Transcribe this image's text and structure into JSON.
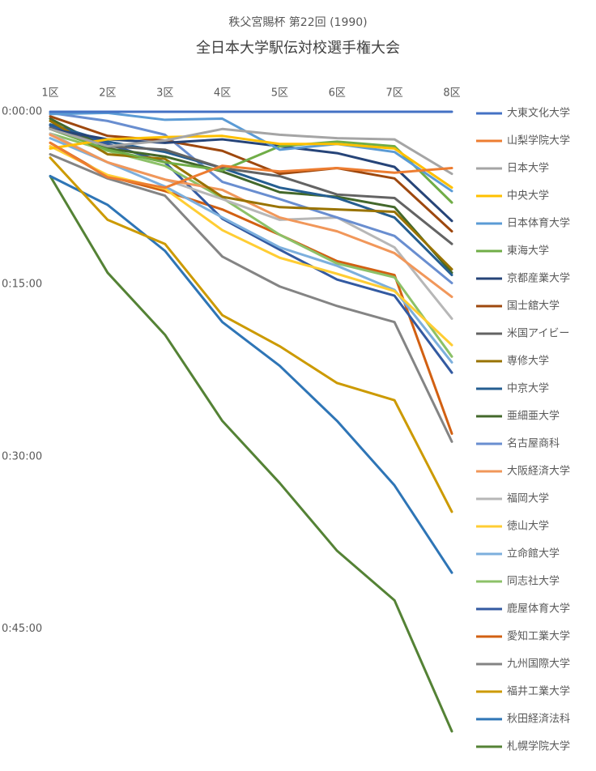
{
  "chart_data": {
    "type": "line",
    "title": "秩父宮賜杯 第22回 (1990)",
    "subtitle": "全日本大学駅伝対校選手権大会",
    "categories": [
      "1区",
      "2区",
      "3区",
      "4区",
      "5区",
      "6区",
      "7区",
      "8区"
    ],
    "ylim": [
      0,
      57
    ],
    "y_reversed": true,
    "yticks": [
      {
        "value": 0,
        "label": "0:00:00"
      },
      {
        "value": 15,
        "label": "0:15:00"
      },
      {
        "value": 30,
        "label": "0:30:00"
      },
      {
        "value": 45,
        "label": "0:45:00"
      }
    ],
    "grid": false,
    "legend": "right",
    "series": [
      {
        "name": "大東文化大学",
        "color": "#4472C4",
        "values": [
          0,
          0,
          0,
          0,
          0,
          0,
          0,
          0
        ]
      },
      {
        "name": "山梨学院大学",
        "color": "#ED7D31",
        "values": [
          2.7,
          5.7,
          6.6,
          4.7,
          5.2,
          4.9,
          5.3,
          4.9
        ]
      },
      {
        "name": "日本大学",
        "color": "#A5A5A5",
        "values": [
          1.5,
          3.0,
          2.5,
          1.5,
          2.0,
          2.3,
          2.4,
          5.4
        ]
      },
      {
        "name": "中央大学",
        "color": "#FFC000",
        "values": [
          3.2,
          2.4,
          2.2,
          2.1,
          2.8,
          2.8,
          3.2,
          6.6
        ]
      },
      {
        "name": "日本体育大学",
        "color": "#5B9BD5",
        "values": [
          0.2,
          0.1,
          0.7,
          0.6,
          3.3,
          2.8,
          3.5,
          6.9
        ]
      },
      {
        "name": "東海大学",
        "color": "#70AD47",
        "values": [
          1.5,
          3.3,
          4.4,
          5.1,
          3.0,
          2.6,
          3.0,
          7.9
        ]
      },
      {
        "name": "京都産業大学",
        "color": "#264478",
        "values": [
          1.5,
          2.4,
          2.7,
          2.4,
          3.0,
          3.6,
          4.8,
          9.5
        ]
      },
      {
        "name": "国士舘大学",
        "color": "#9E480E",
        "values": [
          0.4,
          2.1,
          2.5,
          3.4,
          5.4,
          4.9,
          5.8,
          10.4
        ]
      },
      {
        "name": "米国アイビー",
        "color": "#636363",
        "values": [
          1.4,
          3.0,
          3.3,
          4.9,
          5.6,
          7.2,
          7.5,
          11.5
        ]
      },
      {
        "name": "専修大学",
        "color": "#997300",
        "values": [
          0.8,
          3.7,
          4.1,
          7.4,
          8.3,
          8.5,
          8.7,
          13.7
        ]
      },
      {
        "name": "中京大学",
        "color": "#255E91",
        "values": [
          1.1,
          2.6,
          3.5,
          4.9,
          6.6,
          7.5,
          9.2,
          14.2
        ]
      },
      {
        "name": "亜細亜大学",
        "color": "#43682B",
        "values": [
          0.6,
          3.2,
          3.9,
          5.2,
          7.0,
          7.4,
          8.3,
          14.0
        ]
      },
      {
        "name": "名古屋商科",
        "color": "#698ED0",
        "values": [
          0.1,
          0.8,
          2.0,
          6.1,
          7.6,
          9.2,
          10.8,
          14.9
        ]
      },
      {
        "name": "大阪経済大学",
        "color": "#F1975A",
        "values": [
          2.0,
          4.4,
          5.9,
          6.8,
          9.2,
          10.4,
          12.3,
          16.1
        ]
      },
      {
        "name": "福岡大学",
        "color": "#B7B7B7",
        "values": [
          1.9,
          4.4,
          5.9,
          7.6,
          9.4,
          9.2,
          11.8,
          18.0
        ]
      },
      {
        "name": "徳山大学",
        "color": "#FFCD33",
        "values": [
          3.0,
          5.5,
          6.7,
          10.3,
          12.7,
          14.1,
          15.6,
          20.3
        ]
      },
      {
        "name": "立命館大学",
        "color": "#7CAFDD",
        "values": [
          2.3,
          4.4,
          6.5,
          9.2,
          11.8,
          13.4,
          15.5,
          21.8
        ]
      },
      {
        "name": "同志社大学",
        "color": "#8CC168",
        "values": [
          1.9,
          3.4,
          4.7,
          7.5,
          10.7,
          13.2,
          14.4,
          21.3
        ]
      },
      {
        "name": "鹿屋体育大学",
        "color": "#335AA1",
        "values": [
          1.2,
          2.8,
          4.4,
          9.3,
          12.0,
          14.6,
          16.0,
          22.7
        ]
      },
      {
        "name": "愛知工業大学",
        "color": "#D26012",
        "values": [
          2.7,
          5.6,
          6.9,
          8.5,
          10.7,
          13.0,
          14.2,
          28.0
        ]
      },
      {
        "name": "九州国際大学",
        "color": "#848484",
        "values": [
          3.7,
          5.8,
          7.3,
          12.6,
          15.2,
          16.9,
          18.3,
          28.7
        ]
      },
      {
        "name": "福井工業大学",
        "color": "#CC9A00",
        "values": [
          4.0,
          9.4,
          11.5,
          17.7,
          20.4,
          23.6,
          25.1,
          34.8
        ]
      },
      {
        "name": "秋田経済法科",
        "color": "#2E75B6",
        "values": [
          5.6,
          8.1,
          12.1,
          18.3,
          22.1,
          26.9,
          32.5,
          40.1
        ]
      },
      {
        "name": "札幌学院大学",
        "color": "#548235",
        "values": [
          5.6,
          14.0,
          19.4,
          26.9,
          32.3,
          38.2,
          42.5,
          53.9
        ]
      }
    ]
  }
}
